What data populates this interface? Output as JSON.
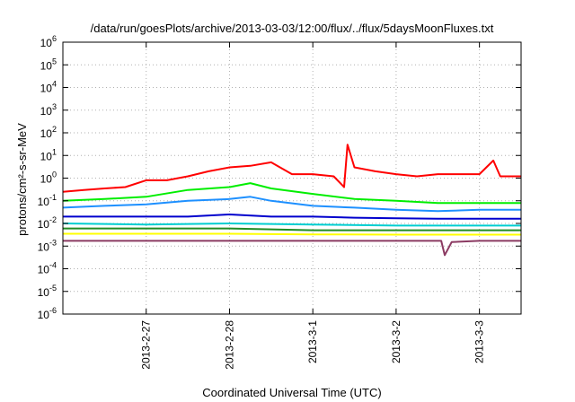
{
  "chart_data": {
    "type": "line",
    "title": "/data/run/goesPlots/archive/2013-03-03/12:00/flux/../flux/5daysMoonFluxes.txt",
    "xlabel": "Coordinated Universal Time (UTC)",
    "ylabel": "protons/cm²-s-sr-MeV",
    "yscale": "log",
    "ylim": [
      1e-06,
      1000000.0
    ],
    "xlim": [
      "2013-02-26 00:00",
      "2013-03-03 12:00"
    ],
    "grid": true,
    "legend": "none",
    "y_ticks": [
      {
        "value": 1e-06,
        "base": "10",
        "exp": "-6"
      },
      {
        "value": 1e-05,
        "base": "10",
        "exp": "-5"
      },
      {
        "value": 0.0001,
        "base": "10",
        "exp": "-4"
      },
      {
        "value": 0.001,
        "base": "10",
        "exp": "-3"
      },
      {
        "value": 0.01,
        "base": "10",
        "exp": "-2"
      },
      {
        "value": 0.1,
        "base": "10",
        "exp": "-1"
      },
      {
        "value": 1.0,
        "base": "10",
        "exp": "0"
      },
      {
        "value": 10.0,
        "base": "10",
        "exp": "1"
      },
      {
        "value": 100.0,
        "base": "10",
        "exp": "2"
      },
      {
        "value": 1000.0,
        "base": "10",
        "exp": "3"
      },
      {
        "value": 10000.0,
        "base": "10",
        "exp": "4"
      },
      {
        "value": 100000.0,
        "base": "10",
        "exp": "5"
      },
      {
        "value": 1000000.0,
        "base": "10",
        "exp": "6"
      }
    ],
    "x_ticks": [
      {
        "date": "2013-02-27 00:00",
        "label": "2013-2-27"
      },
      {
        "date": "2013-02-28 00:00",
        "label": "2013-2-28"
      },
      {
        "date": "2013-03-01 00:00",
        "label": "2013-3-1"
      },
      {
        "date": "2013-03-02 00:00",
        "label": "2013-3-2"
      },
      {
        "date": "2013-03-03 00:00",
        "label": "2013-3-3"
      }
    ],
    "series": [
      {
        "color": "#ff0000",
        "x": [
          "2013-02-26 00:00",
          "2013-02-26 06:00",
          "2013-02-26 12:00",
          "2013-02-26 18:00",
          "2013-02-27 00:00",
          "2013-02-27 06:00",
          "2013-02-27 12:00",
          "2013-02-27 18:00",
          "2013-02-28 00:00",
          "2013-02-28 06:00",
          "2013-02-28 12:00",
          "2013-02-28 18:00",
          "2013-03-01 00:00",
          "2013-03-01 06:00",
          "2013-03-01 09:00",
          "2013-03-01 10:00",
          "2013-03-01 12:00",
          "2013-03-01 18:00",
          "2013-03-02 00:00",
          "2013-03-02 06:00",
          "2013-03-02 12:00",
          "2013-03-02 18:00",
          "2013-03-03 00:00",
          "2013-03-03 04:00",
          "2013-03-03 06:00",
          "2013-03-03 12:00"
        ],
        "y": [
          0.25,
          0.3,
          0.35,
          0.4,
          0.8,
          0.8,
          1.2,
          2,
          3,
          3.5,
          5,
          1.5,
          1.5,
          1.2,
          0.4,
          30,
          3,
          2,
          1.5,
          1.2,
          1.5,
          1.5,
          1.5,
          6,
          1.2,
          1.2
        ]
      },
      {
        "color": "#00ee00",
        "x": [
          "2013-02-26 00:00",
          "2013-02-26 12:00",
          "2013-02-27 00:00",
          "2013-02-27 12:00",
          "2013-02-28 00:00",
          "2013-02-28 06:00",
          "2013-02-28 12:00",
          "2013-03-01 00:00",
          "2013-03-01 12:00",
          "2013-03-02 00:00",
          "2013-03-02 12:00",
          "2013-03-03 00:00",
          "2013-03-03 12:00"
        ],
        "y": [
          0.1,
          0.12,
          0.15,
          0.3,
          0.4,
          0.6,
          0.35,
          0.2,
          0.12,
          0.1,
          0.08,
          0.08,
          0.08
        ]
      },
      {
        "color": "#1e90ff",
        "x": [
          "2013-02-26 00:00",
          "2013-02-26 12:00",
          "2013-02-27 00:00",
          "2013-02-27 12:00",
          "2013-02-28 00:00",
          "2013-02-28 06:00",
          "2013-02-28 12:00",
          "2013-03-01 00:00",
          "2013-03-01 12:00",
          "2013-03-02 00:00",
          "2013-03-02 12:00",
          "2013-03-03 00:00",
          "2013-03-03 12:00"
        ],
        "y": [
          0.05,
          0.06,
          0.07,
          0.1,
          0.12,
          0.15,
          0.1,
          0.06,
          0.05,
          0.04,
          0.035,
          0.04,
          0.04
        ]
      },
      {
        "color": "#0000cd",
        "x": [
          "2013-02-26 00:00",
          "2013-02-26 12:00",
          "2013-02-27 00:00",
          "2013-02-27 12:00",
          "2013-02-28 00:00",
          "2013-02-28 12:00",
          "2013-03-01 00:00",
          "2013-03-01 12:00",
          "2013-03-02 00:00",
          "2013-03-02 12:00",
          "2013-03-03 00:00",
          "2013-03-03 12:00"
        ],
        "y": [
          0.02,
          0.02,
          0.02,
          0.02,
          0.025,
          0.02,
          0.02,
          0.018,
          0.017,
          0.016,
          0.016,
          0.016
        ]
      },
      {
        "color": "#00ced1",
        "x": [
          "2013-02-26 00:00",
          "2013-02-27 00:00",
          "2013-02-28 00:00",
          "2013-03-01 00:00",
          "2013-03-02 00:00",
          "2013-03-03 00:00",
          "2013-03-03 12:00"
        ],
        "y": [
          0.01,
          0.009,
          0.01,
          0.009,
          0.008,
          0.008,
          0.008
        ]
      },
      {
        "color": "#228b22",
        "x": [
          "2013-02-26 00:00",
          "2013-02-27 00:00",
          "2013-02-28 00:00",
          "2013-03-01 00:00",
          "2013-03-02 00:00",
          "2013-03-03 00:00",
          "2013-03-03 12:00"
        ],
        "y": [
          0.006,
          0.006,
          0.006,
          0.005,
          0.005,
          0.005,
          0.005
        ]
      },
      {
        "color": "#ffff00",
        "x": [
          "2013-02-26 00:00",
          "2013-02-27 00:00",
          "2013-02-28 00:00",
          "2013-03-01 00:00",
          "2013-03-02 00:00",
          "2013-03-03 00:00",
          "2013-03-03 12:00"
        ],
        "y": [
          0.0035,
          0.0035,
          0.0035,
          0.0033,
          0.0032,
          0.0032,
          0.0032
        ]
      },
      {
        "color": "#8b3a62",
        "x": [
          "2013-02-26 00:00",
          "2013-02-27 00:00",
          "2013-02-28 00:00",
          "2013-03-01 00:00",
          "2013-03-02 00:00",
          "2013-03-02 13:00",
          "2013-03-02 14:00",
          "2013-03-02 16:00",
          "2013-03-03 00:00",
          "2013-03-03 12:00"
        ],
        "y": [
          0.0017,
          0.0017,
          0.0017,
          0.0017,
          0.0017,
          0.0017,
          0.0004,
          0.0015,
          0.0017,
          0.0017
        ]
      }
    ]
  }
}
